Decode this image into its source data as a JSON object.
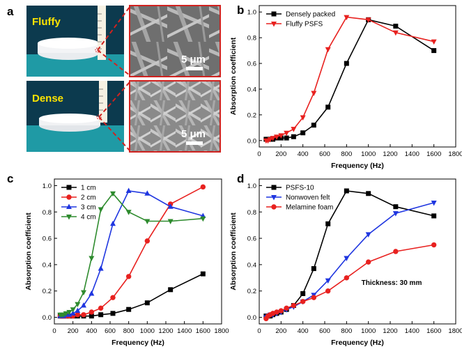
{
  "figure": {
    "panel_a": {
      "label": "a",
      "top_caption": "Fluffy",
      "bottom_caption": "Dense",
      "scale_top": "5 μm",
      "scale_bottom": "5 μm"
    }
  },
  "colors": {
    "black": "#000000",
    "red": "#e8211f",
    "blue": "#1f36e0",
    "green": "#2e8b2e",
    "zoom_frame": "#d0221f"
  },
  "chart_data": [
    {
      "panel": "b",
      "type": "line",
      "xlabel": "Frequency (Hz)",
      "ylabel": "Absorption coefficient",
      "xlim": [
        0,
        1800
      ],
      "ylim": [
        -0.05,
        1.05
      ],
      "xticks": [
        "0",
        "200",
        "400",
        "600",
        "800",
        "1000",
        "1200",
        "1400",
        "1600",
        "1800"
      ],
      "yticks": [
        "0.0",
        "0.2",
        "0.4",
        "0.6",
        "0.8",
        "1.0"
      ],
      "legend_position": "top-left",
      "series": [
        {
          "name": "Densely packed",
          "color": "#000000",
          "marker": "square",
          "x": [
            63,
            80,
            100,
            125,
            160,
            200,
            250,
            315,
            400,
            500,
            630,
            800,
            1000,
            1250,
            1600
          ],
          "y": [
            0.01,
            0.01,
            0.01,
            0.01,
            0.02,
            0.02,
            0.02,
            0.03,
            0.06,
            0.12,
            0.26,
            0.6,
            0.94,
            0.89,
            0.7
          ]
        },
        {
          "name": "Fluffy PSFS",
          "color": "#e8211f",
          "marker": "triangle-down",
          "x": [
            63,
            80,
            100,
            125,
            160,
            200,
            250,
            315,
            400,
            500,
            630,
            800,
            1000,
            1250,
            1600
          ],
          "y": [
            0.0,
            0.0,
            0.01,
            0.02,
            0.03,
            0.04,
            0.06,
            0.09,
            0.18,
            0.37,
            0.71,
            0.96,
            0.94,
            0.84,
            0.77
          ]
        }
      ]
    },
    {
      "panel": "c",
      "type": "line",
      "xlabel": "Frequency (Hz)",
      "ylabel": "Absorption coefficient",
      "xlim": [
        0,
        1800
      ],
      "ylim": [
        -0.05,
        1.05
      ],
      "xticks": [
        "0",
        "200",
        "400",
        "600",
        "800",
        "1000",
        "1200",
        "1400",
        "1600",
        "1800"
      ],
      "yticks": [
        "0.0",
        "0.2",
        "0.4",
        "0.6",
        "0.8",
        "1.0"
      ],
      "legend_position": "top-left",
      "series": [
        {
          "name": "1 cm",
          "color": "#000000",
          "marker": "square",
          "x": [
            63,
            80,
            100,
            125,
            160,
            200,
            250,
            315,
            400,
            500,
            630,
            800,
            1000,
            1250,
            1600
          ],
          "y": [
            0.01,
            0.01,
            0.01,
            0.01,
            0.01,
            0.01,
            0.01,
            0.01,
            0.01,
            0.02,
            0.03,
            0.06,
            0.11,
            0.21,
            0.33
          ]
        },
        {
          "name": "2 cm",
          "color": "#e8211f",
          "marker": "circle",
          "x": [
            63,
            80,
            100,
            125,
            160,
            200,
            250,
            315,
            400,
            500,
            630,
            800,
            1000,
            1250,
            1600
          ],
          "y": [
            0.01,
            0.01,
            0.01,
            0.01,
            0.01,
            0.01,
            0.02,
            0.02,
            0.04,
            0.07,
            0.15,
            0.31,
            0.58,
            0.86,
            0.99
          ]
        },
        {
          "name": "3 cm",
          "color": "#1f36e0",
          "marker": "triangle-up",
          "x": [
            63,
            80,
            100,
            125,
            160,
            200,
            250,
            315,
            400,
            500,
            630,
            800,
            1000,
            1250,
            1600
          ],
          "y": [
            0.01,
            0.01,
            0.01,
            0.02,
            0.02,
            0.03,
            0.05,
            0.09,
            0.18,
            0.37,
            0.71,
            0.96,
            0.94,
            0.84,
            0.77
          ]
        },
        {
          "name": "4 cm",
          "color": "#2e8b2e",
          "marker": "triangle-down",
          "x": [
            63,
            80,
            100,
            125,
            160,
            200,
            250,
            315,
            400,
            500,
            630,
            800,
            1000,
            1250,
            1600
          ],
          "y": [
            0.02,
            0.02,
            0.02,
            0.03,
            0.04,
            0.06,
            0.1,
            0.19,
            0.45,
            0.82,
            0.94,
            0.8,
            0.73,
            0.73,
            0.75
          ]
        }
      ]
    },
    {
      "panel": "d",
      "type": "line",
      "xlabel": "Frequency (Hz)",
      "ylabel": "Absorption coefficient",
      "xlim": [
        0,
        1800
      ],
      "ylim": [
        -0.05,
        1.05
      ],
      "xticks": [
        "0",
        "200",
        "400",
        "600",
        "800",
        "1000",
        "1200",
        "1400",
        "1600",
        "1800"
      ],
      "yticks": [
        "0.0",
        "0.2",
        "0.4",
        "0.6",
        "0.8",
        "1.0"
      ],
      "legend_position": "top-left",
      "annotation": "Thickness: 30 mm",
      "series": [
        {
          "name": "PSFS-10",
          "color": "#000000",
          "marker": "square",
          "x": [
            63,
            80,
            100,
            125,
            160,
            200,
            250,
            315,
            400,
            500,
            630,
            800,
            1000,
            1250,
            1600
          ],
          "y": [
            0.01,
            0.01,
            0.01,
            0.02,
            0.03,
            0.04,
            0.06,
            0.09,
            0.18,
            0.37,
            0.71,
            0.96,
            0.94,
            0.84,
            0.77
          ]
        },
        {
          "name": "Nonwoven felt",
          "color": "#1f36e0",
          "marker": "triangle-down",
          "x": [
            63,
            80,
            100,
            125,
            160,
            200,
            250,
            315,
            400,
            500,
            630,
            800,
            1000,
            1250,
            1600
          ],
          "y": [
            0.0,
            0.01,
            0.02,
            0.02,
            0.03,
            0.04,
            0.06,
            0.08,
            0.12,
            0.17,
            0.28,
            0.45,
            0.63,
            0.79,
            0.87
          ]
        },
        {
          "name": "Melamine foam",
          "color": "#e8211f",
          "marker": "circle",
          "x": [
            63,
            80,
            100,
            125,
            160,
            200,
            250,
            315,
            400,
            500,
            630,
            800,
            1000,
            1250,
            1600
          ],
          "y": [
            -0.01,
            0.01,
            0.02,
            0.03,
            0.04,
            0.05,
            0.07,
            0.09,
            0.12,
            0.15,
            0.2,
            0.3,
            0.42,
            0.5,
            0.55
          ]
        }
      ]
    }
  ]
}
